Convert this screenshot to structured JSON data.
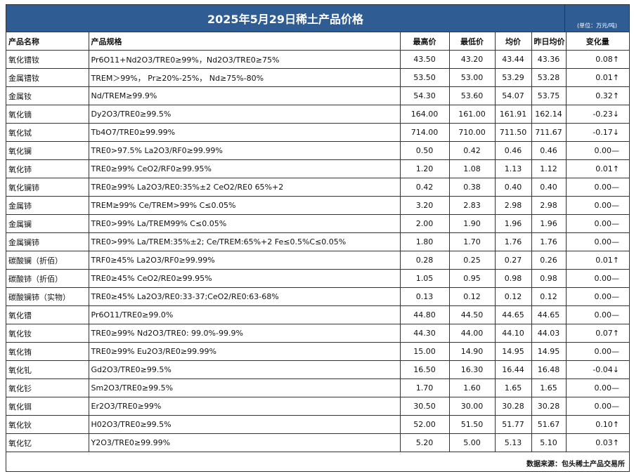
{
  "title": "2025年5月29日稀土产品价格",
  "unit": "(单位：万元/吨)",
  "headers": {
    "name": "产品名称",
    "spec": "产品规格",
    "high": "最高价",
    "low": "最低价",
    "avg": "均价",
    "yest": "昨日均价",
    "change": "变化量"
  },
  "rows": [
    {
      "name": "氧化镨钕",
      "spec": "Pr6O11+Nd2O3/TRE0≥99%，Nd2O3/TRE0≥75%",
      "high": "43.50",
      "low": "43.20",
      "avg": "43.44",
      "yest": "43.36",
      "change": "0.08↑"
    },
    {
      "name": "金属镨钕",
      "spec": "TREM＞99%，   Pr≥20%-25%，   Nd≥75%-80%",
      "high": "53.50",
      "low": "53.00",
      "avg": "53.29",
      "yest": "53.28",
      "change": "0.01↑"
    },
    {
      "name": "金属钕",
      "spec": "Nd/TREM≥99.9%",
      "high": "54.30",
      "low": "53.60",
      "avg": "54.07",
      "yest": "53.75",
      "change": "0.32↑"
    },
    {
      "name": "氧化镝",
      "spec": "Dy2O3/TRE0≥99.5%",
      "high": "164.00",
      "low": "161.00",
      "avg": "161.91",
      "yest": "162.14",
      "change": "-0.23↓"
    },
    {
      "name": "氧化铽",
      "spec": "Tb4O7/TRE0≥99.99%",
      "high": "714.00",
      "low": "710.00",
      "avg": "711.50",
      "yest": "711.67",
      "change": "-0.17↓"
    },
    {
      "name": "氧化镧",
      "spec": "TRE0>97.5%   La2O3/RF0≥99.99%",
      "high": "0.50",
      "low": "0.42",
      "avg": "0.46",
      "yest": "0.46",
      "change": "0.00—"
    },
    {
      "name": "氧化铈",
      "spec": "TRE0≥99%   CeO2/RF0≥99.95%",
      "high": "1.20",
      "low": "1.08",
      "avg": "1.13",
      "yest": "1.12",
      "change": "0.01↑"
    },
    {
      "name": "氧化镧铈",
      "spec": "TRE0≥99%   La2O3/RE0:35%±2  CeO2/RE0  65%+2",
      "high": "0.42",
      "low": "0.38",
      "avg": "0.40",
      "yest": "0.40",
      "change": "0.00—"
    },
    {
      "name": "金属铈",
      "spec": "TREM≥99%     Ce/TREM>99%    C≤0.05%",
      "high": "3.20",
      "low": "2.83",
      "avg": "2.98",
      "yest": "2.98",
      "change": "0.00—"
    },
    {
      "name": "金属镧",
      "spec": "TRE0>99%  La/TREM99%  C≤0.05%",
      "high": "2.00",
      "low": "1.90",
      "avg": "1.96",
      "yest": "1.96",
      "change": "0.00—"
    },
    {
      "name": "金属镧铈",
      "spec": "TRE0>99%  La/TREM:35%±2;  Ce/TREM:65%+2 Fe≤0.5%C≤0.05%",
      "high": "1.80",
      "low": "1.70",
      "avg": "1.76",
      "yest": "1.76",
      "change": "0.00—"
    },
    {
      "name": "碳酸镧（折佰）",
      "spec": "TRF0≥45%  La2O3/RF0≥99.99%",
      "high": "0.28",
      "low": "0.25",
      "avg": "0.27",
      "yest": "0.26",
      "change": "0.01↑"
    },
    {
      "name": "碳酸铈（折佰）",
      "spec": "TRE0≥45%  CeO2/RE0≥99.95%",
      "high": "1.05",
      "low": "0.95",
      "avg": "0.98",
      "yest": "0.98",
      "change": "0.00—"
    },
    {
      "name": "碳酸镧铈（实物）",
      "spec": "TRE0≥45% La2O3/RE0:33-37;CeO2/RE0:63-68%",
      "high": "0.13",
      "low": "0.12",
      "avg": "0.12",
      "yest": "0.12",
      "change": "0.00—"
    },
    {
      "name": "氧化镨",
      "spec": "Pr6O11/TRE0≥99.0%",
      "high": "44.80",
      "low": "44.50",
      "avg": "44.65",
      "yest": "44.65",
      "change": "0.00—"
    },
    {
      "name": "氧化钕",
      "spec": "TRE0≥99%   Nd2O3/TRE0:  99.0%-99.9%",
      "high": "44.30",
      "low": "44.00",
      "avg": "44.10",
      "yest": "44.03",
      "change": "0.07↑"
    },
    {
      "name": "氧化铕",
      "spec": "TRE0≥99%     Eu2O3/RE0≥99.99%",
      "high": "15.00",
      "low": "14.90",
      "avg": "14.95",
      "yest": "14.95",
      "change": "0.00—"
    },
    {
      "name": "氧化钆",
      "spec": "Gd2O3/TRE0≥99.5%",
      "high": "16.50",
      "low": "16.30",
      "avg": "16.44",
      "yest": "16.48",
      "change": "-0.04↓"
    },
    {
      "name": "氧化钐",
      "spec": "Sm2O3/TRE0≥99.5%",
      "high": "1.70",
      "low": "1.60",
      "avg": "1.65",
      "yest": "1.65",
      "change": "0.00—"
    },
    {
      "name": "氧化铒",
      "spec": "Er2O3/TRE0≥99%",
      "high": "30.50",
      "low": "30.00",
      "avg": "30.28",
      "yest": "30.28",
      "change": "0.00—"
    },
    {
      "name": "氧化钬",
      "spec": "H02O3/TRE0≥99.5%",
      "high": "52.00",
      "low": "51.50",
      "avg": "51.77",
      "yest": "51.67",
      "change": "0.10↑"
    },
    {
      "name": "氧化钇",
      "spec": "Y2O3/TRE0≥99.99%",
      "high": "5.20",
      "low": "5.00",
      "avg": "5.13",
      "yest": "5.10",
      "change": "0.03↑"
    }
  ],
  "footer": "数据来源：包头稀土产品交易所"
}
